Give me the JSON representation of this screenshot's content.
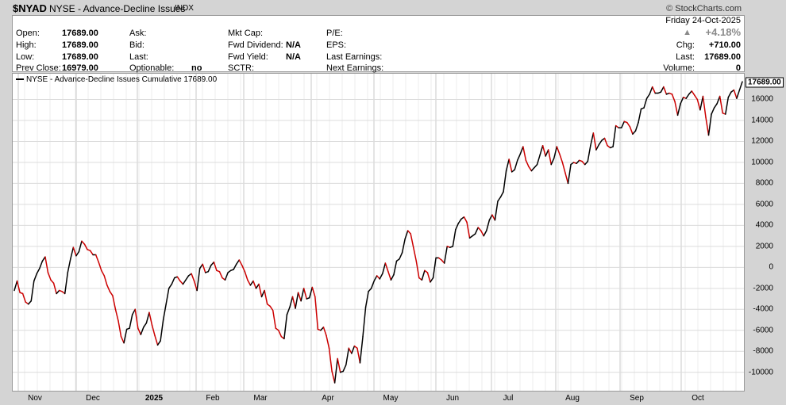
{
  "header": {
    "symbol": "$NYAD",
    "description": "NYSE - Advance-Decline Issues",
    "type": "INDX",
    "brand": "© StockCharts.com"
  },
  "info": {
    "date": "Friday  24-Oct-2025",
    "change_pct": "+4.18%",
    "open_label": "Open:",
    "open": "17689.00",
    "high_label": "High:",
    "high": "17689.00",
    "low_label": "Low:",
    "low": "17689.00",
    "prev_close_label": "Prev Close:",
    "prev_close": "16979.00",
    "ask_label": "Ask:",
    "bid_label": "Bid:",
    "last_label_mid": "Last:",
    "optionable_label": "Optionable:",
    "optionable": "no",
    "mktcap_label": "Mkt Cap:",
    "fwd_div_label": "Fwd Dividend:",
    "fwd_div": "N/A",
    "fwd_yield_label": "Fwd Yield:",
    "fwd_yield": "N/A",
    "sctr_label": "SCTR:",
    "pe_label": "P/E:",
    "eps_label": "EPS:",
    "last_earn_label": "Last Earnings:",
    "next_earn_label": "Next Earnings:",
    "chg_label": "Chg:",
    "chg": "+710.00",
    "last_label": "Last:",
    "last": "17689.00",
    "volume_label": "Volume:",
    "volume": "0"
  },
  "chart_data": {
    "type": "line",
    "legend": "NYSE - Advance-Decline Issues Cumulative 17689.00",
    "last_value_label": "17689.00",
    "ylim": [
      -11000,
      18000
    ],
    "yticks": [
      -10000,
      -8000,
      -6000,
      -4000,
      -2000,
      0,
      2000,
      4000,
      6000,
      8000,
      10000,
      12000,
      14000,
      16000
    ],
    "xticks": [
      {
        "label": "Nov",
        "bold": false
      },
      {
        "label": "Dec",
        "bold": false
      },
      {
        "label": "2025",
        "bold": true
      },
      {
        "label": "Feb",
        "bold": false
      },
      {
        "label": "Mar",
        "bold": false
      },
      {
        "label": "Apr",
        "bold": false
      },
      {
        "label": "May",
        "bold": false
      },
      {
        "label": "Jun",
        "bold": false
      },
      {
        "label": "Jul",
        "bold": false
      },
      {
        "label": "Aug",
        "bold": false
      },
      {
        "label": "Sep",
        "bold": false
      },
      {
        "label": "Oct",
        "bold": false
      }
    ],
    "up_color": "#000000",
    "down_color": "#cc0000",
    "values": [
      -2200,
      -1300,
      -2400,
      -2500,
      -3300,
      -3500,
      -3200,
      -1300,
      -600,
      -100,
      600,
      1000,
      -500,
      -1200,
      -1500,
      -2500,
      -2200,
      -2300,
      -2500,
      -500,
      800,
      1900,
      1100,
      1500,
      2500,
      2200,
      1700,
      1600,
      1200,
      1200,
      500,
      -300,
      -800,
      -1700,
      -2300,
      -2700,
      -4000,
      -5100,
      -6600,
      -7200,
      -5900,
      -5800,
      -4500,
      -4000,
      -5800,
      -6400,
      -5700,
      -5300,
      -4300,
      -5500,
      -6500,
      -7400,
      -7000,
      -5000,
      -3500,
      -2000,
      -1600,
      -1000,
      -900,
      -1300,
      -1600,
      -1200,
      -800,
      -600,
      -1300,
      -2200,
      -100,
      300,
      -500,
      -400,
      200,
      500,
      -300,
      -400,
      -1000,
      -1200,
      -500,
      -300,
      -200,
      300,
      700,
      200,
      -400,
      -1200,
      -1700,
      -1300,
      -2000,
      -1600,
      -2800,
      -2200,
      -3500,
      -3700,
      -4100,
      -5800,
      -6000,
      -6600,
      -6800,
      -4500,
      -3800,
      -2800,
      -3900,
      -2400,
      -3200,
      -2000,
      -3000,
      -2900,
      -1900,
      -2800,
      -5900,
      -6000,
      -5700,
      -6500,
      -7700,
      -9900,
      -11000,
      -8700,
      -10000,
      -9900,
      -9300,
      -7700,
      -8200,
      -7500,
      -7700,
      -9100,
      -6600,
      -3800,
      -2300,
      -2000,
      -1300,
      -800,
      -1100,
      -600,
      400,
      -400,
      -1200,
      -700,
      600,
      800,
      1400,
      2700,
      3500,
      3200,
      1900,
      600,
      -1000,
      -1200,
      -300,
      -500,
      -1400,
      -1000,
      900,
      900,
      700,
      400,
      2000,
      1900,
      2000,
      3600,
      4200,
      4600,
      4800,
      4300,
      2800,
      3000,
      3200,
      3800,
      3500,
      3000,
      3500,
      4500,
      5000,
      4500,
      6300,
      6700,
      7200,
      9200,
      10300,
      9100,
      9300,
      10200,
      10800,
      11500,
      10200,
      9600,
      9200,
      9500,
      9800,
      10700,
      11600,
      10600,
      11200,
      9800,
      10400,
      11500,
      10800,
      10000,
      9000,
      8000,
      9800,
      10000,
      9900,
      10200,
      10100,
      9800,
      10100,
      11600,
      12800,
      11200,
      11700,
      12100,
      12300,
      11600,
      11400,
      11500,
      13500,
      13300,
      13300,
      13900,
      13800,
      13400,
      12700,
      13000,
      13800,
      15100,
      15200,
      16100,
      16500,
      17200,
      16600,
      16600,
      16700,
      17200,
      16500,
      16600,
      16500,
      15800,
      14500,
      15600,
      16200,
      16100,
      16500,
      16800,
      16400,
      16000,
      15000,
      16300,
      14300,
      12600,
      14600,
      15200,
      15600,
      16300,
      14700,
      14600,
      16200,
      16700,
      16900,
      16100,
      16900,
      17689
    ]
  }
}
